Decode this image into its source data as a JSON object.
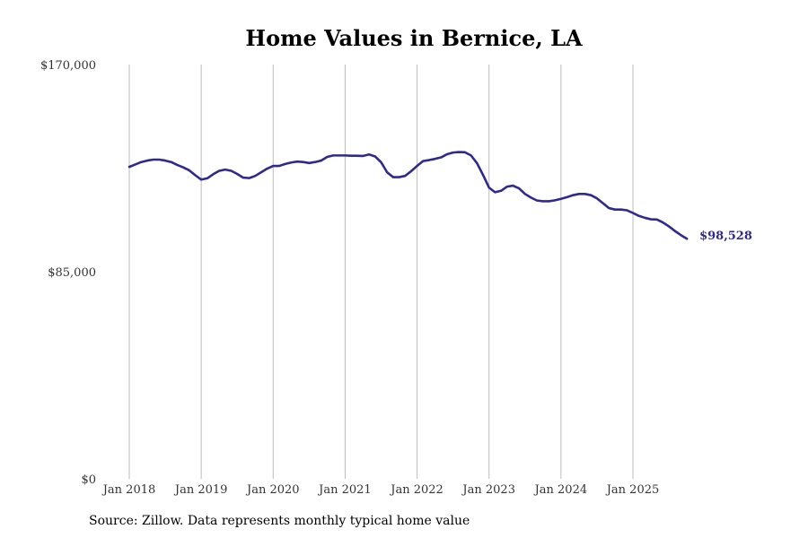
{
  "chart_data": {
    "type": "line",
    "title": "Home Values in Bernice, LA",
    "source": "Source: Zillow. Data represents monthly typical home value",
    "xlabel": "",
    "ylabel": "",
    "ylim": [
      0,
      170000
    ],
    "y_ticks": [
      {
        "value": 0,
        "label": "$0"
      },
      {
        "value": 85000,
        "label": "$85,000"
      },
      {
        "value": 170000,
        "label": "$170,000"
      }
    ],
    "x_ticks": [
      {
        "index": 0,
        "label": "Jan 2018"
      },
      {
        "index": 12,
        "label": "Jan 2019"
      },
      {
        "index": 24,
        "label": "Jan 2020"
      },
      {
        "index": 36,
        "label": "Jan 2021"
      },
      {
        "index": 48,
        "label": "Jan 2022"
      },
      {
        "index": 60,
        "label": "Jan 2023"
      },
      {
        "index": 72,
        "label": "Jan 2024"
      },
      {
        "index": 84,
        "label": "Jan 2025"
      }
    ],
    "grid": "vertical",
    "line_color": "#2e2a8f",
    "end_label": "$98,528",
    "series": [
      {
        "name": "Typical home value",
        "start": "Jan 2018",
        "values": [
          128000,
          129000,
          130000,
          130600,
          131000,
          131000,
          130600,
          130000,
          128800,
          127800,
          126600,
          124600,
          122800,
          123300,
          125000,
          126400,
          126900,
          126400,
          125100,
          123600,
          123400,
          124300,
          125800,
          127300,
          128400,
          128400,
          129200,
          129800,
          130200,
          130000,
          129600,
          130000,
          130600,
          132100,
          132700,
          132700,
          132700,
          132600,
          132600,
          132500,
          133100,
          132300,
          129900,
          125800,
          123800,
          123800,
          124300,
          126200,
          128400,
          130400,
          130800,
          131300,
          131900,
          133200,
          133900,
          134100,
          134000,
          132700,
          129500,
          124700,
          119500,
          117600,
          118200,
          119900,
          120300,
          119200,
          116900,
          115400,
          114200,
          113900,
          113900,
          114300,
          114900,
          115600,
          116400,
          116900,
          116900,
          116400,
          115100,
          113100,
          111100,
          110500,
          110500,
          110200,
          109100,
          107900,
          107100,
          106500,
          106400,
          105200,
          103600,
          101700,
          100000,
          98528
        ]
      }
    ]
  }
}
